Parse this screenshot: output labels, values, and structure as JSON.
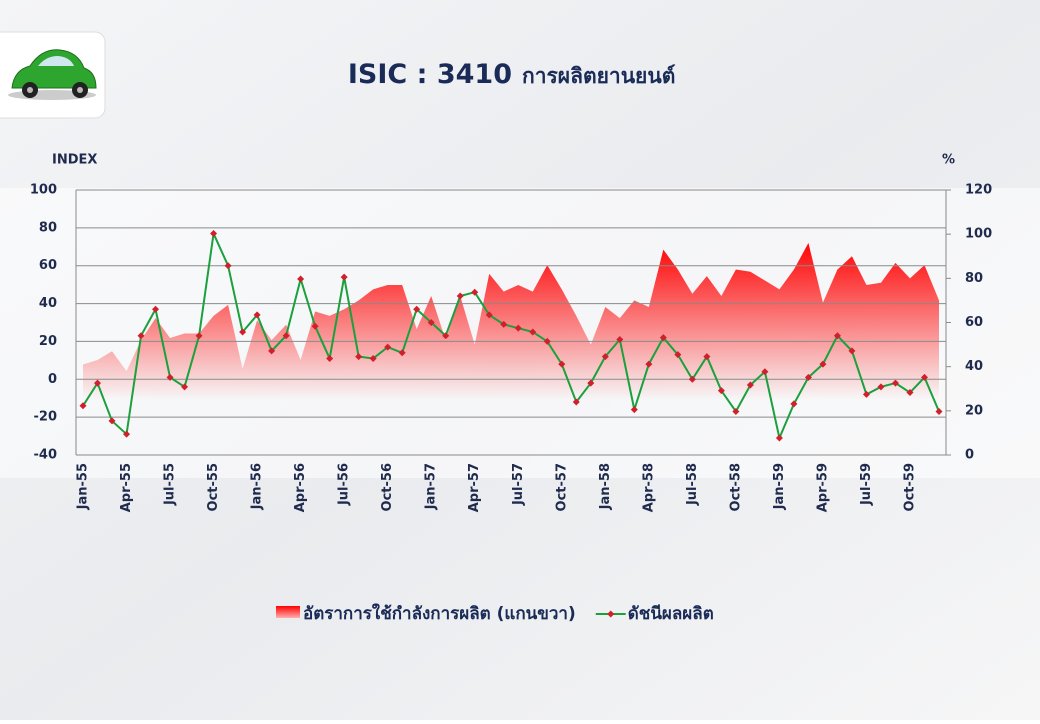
{
  "chart_data": {
    "type": "line-area",
    "title": "ISIC : 3410",
    "subtitle": "การผลิตยานยนต์",
    "y_label": "INDEX",
    "y2_label": "%",
    "categories": [
      "Jan-55",
      null,
      null,
      "Apr-55",
      null,
      null,
      "Jul-55",
      null,
      null,
      "Oct-55",
      null,
      null,
      "Jan-56",
      null,
      null,
      "Apr-56",
      null,
      null,
      "Jul-56",
      null,
      null,
      "Oct-56",
      null,
      null,
      "Jan-57",
      null,
      null,
      "Apr-57",
      null,
      null,
      "Jul-57",
      null,
      null,
      "Oct-57",
      null,
      null,
      "Jan-58",
      null,
      null,
      "Apr-58",
      null,
      null,
      "Jul-58",
      null,
      null,
      "Oct-58",
      null,
      null,
      "Jan-59",
      null,
      null,
      "Apr-59",
      null,
      null,
      "Jul-59",
      null,
      null,
      "Oct-59",
      null,
      null
    ],
    "series": [
      {
        "name": "อัตราการใช้กำลังการผลิต (แกนขวา)",
        "type": "area",
        "axis": "y2",
        "color": "#ff0000",
        "values": [
          41,
          43,
          47,
          38,
          52,
          62,
          53,
          55,
          55,
          63,
          68,
          39,
          61,
          52,
          59,
          43,
          65,
          63,
          66,
          70,
          75,
          77,
          77,
          57,
          72,
          52,
          72,
          50,
          82,
          74,
          77,
          74,
          86,
          75,
          63,
          50,
          67,
          62,
          70,
          67,
          93,
          84,
          73,
          81,
          72,
          84,
          83,
          79,
          75,
          84,
          96,
          69,
          84,
          90,
          77,
          78,
          87,
          80,
          86,
          70
        ]
      },
      {
        "name": "ดัชนีผลผลิต",
        "type": "line",
        "axis": "y",
        "color": "#1aa03c",
        "marker_color": "#d0202c",
        "values": [
          -14,
          -2,
          -22,
          -29,
          23,
          37,
          1,
          -4,
          23,
          77,
          60,
          25,
          34,
          15,
          23,
          53,
          28,
          11,
          54,
          12,
          11,
          17,
          14,
          37,
          30,
          23,
          44,
          46,
          34,
          29,
          27,
          25,
          20,
          8,
          -12,
          -2,
          12,
          21,
          -16,
          8,
          22,
          13,
          0,
          12,
          -6,
          -17,
          -3,
          4,
          -31,
          -13,
          1,
          8,
          23,
          15,
          -8,
          -4,
          -2,
          -7,
          1,
          -17
        ]
      }
    ],
    "ylim": [
      -40,
      100
    ],
    "yticks": [
      -40,
      -20,
      0,
      20,
      40,
      60,
      80,
      100
    ],
    "y2lim": [
      0,
      120
    ],
    "y2ticks": [
      0,
      20,
      40,
      60,
      80,
      100,
      120
    ],
    "grid": true,
    "legend": "bottom"
  }
}
